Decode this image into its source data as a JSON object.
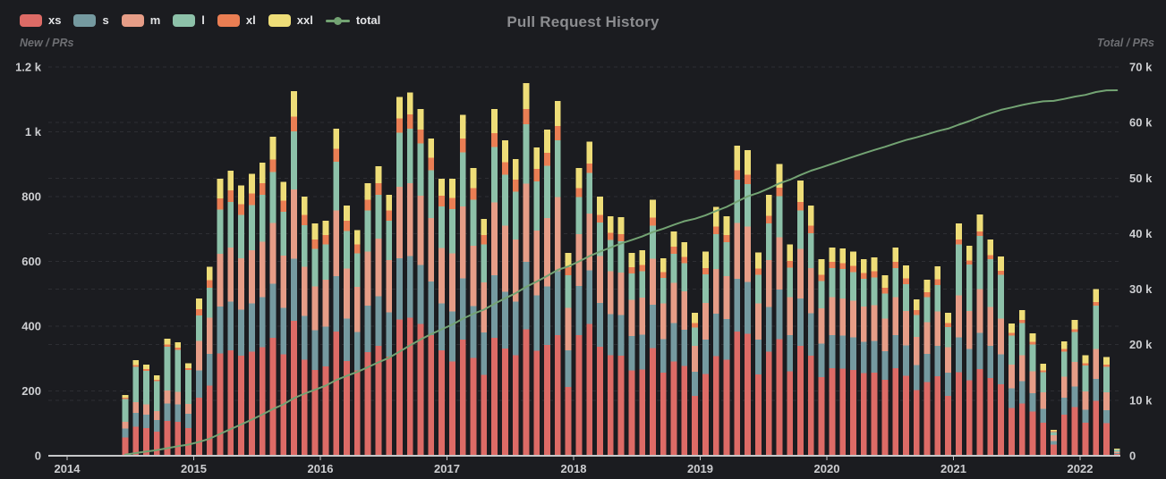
{
  "title": "Pull Request History",
  "legend": [
    {
      "label": "xs",
      "type": "bar",
      "color": "#dd6b66"
    },
    {
      "label": "s",
      "type": "bar",
      "color": "#759aa0"
    },
    {
      "label": "m",
      "type": "bar",
      "color": "#e69d87"
    },
    {
      "label": "l",
      "type": "bar",
      "color": "#8dc1a9"
    },
    {
      "label": "xl",
      "type": "bar",
      "color": "#ea7e53"
    },
    {
      "label": "xxl",
      "type": "bar",
      "color": "#eedd78"
    },
    {
      "label": "total",
      "type": "line",
      "color": "#73a373"
    }
  ],
  "y_axis_left": {
    "name": "New / PRs",
    "max": 1200,
    "tick_labels": [
      "1.2 k",
      "1 k",
      "800",
      "600",
      "400",
      "200",
      "0"
    ],
    "tick_values": [
      1200,
      1000,
      800,
      600,
      400,
      200,
      0
    ]
  },
  "y_axis_right": {
    "name": "Total / PRs",
    "max": 70000,
    "tick_labels": [
      "70 k",
      "60 k",
      "50 k",
      "40 k",
      "30 k",
      "20 k",
      "10 k",
      "0"
    ],
    "tick_values": [
      70000,
      60000,
      50000,
      40000,
      30000,
      20000,
      10000,
      0
    ]
  },
  "x_axis": {
    "year_labels": [
      "2014",
      "2015",
      "2016",
      "2017",
      "2018",
      "2019",
      "2020",
      "2021",
      "2022"
    ]
  },
  "chart_data": {
    "type": "bar",
    "subtype": "stacked-monthly-bars-with-cumulative-line",
    "title": "Pull Request History",
    "legend_position": "top-left",
    "grid": "horizontal-dashed",
    "ylim_left": [
      0,
      1200
    ],
    "ylim_right": [
      0,
      70000
    ],
    "x": [
      "2014-06",
      "2014-07",
      "2014-08",
      "2014-09",
      "2014-10",
      "2014-11",
      "2014-12",
      "2015-01",
      "2015-02",
      "2015-03",
      "2015-04",
      "2015-05",
      "2015-06",
      "2015-07",
      "2015-08",
      "2015-09",
      "2015-10",
      "2015-11",
      "2015-12",
      "2016-01",
      "2016-02",
      "2016-03",
      "2016-04",
      "2016-05",
      "2016-06",
      "2016-07",
      "2016-08",
      "2016-09",
      "2016-10",
      "2016-11",
      "2016-12",
      "2017-01",
      "2017-02",
      "2017-03",
      "2017-04",
      "2017-05",
      "2017-06",
      "2017-07",
      "2017-08",
      "2017-09",
      "2017-10",
      "2017-11",
      "2017-12",
      "2018-01",
      "2018-02",
      "2018-03",
      "2018-04",
      "2018-05",
      "2018-06",
      "2018-07",
      "2018-08",
      "2018-09",
      "2018-10",
      "2018-11",
      "2018-12",
      "2019-01",
      "2019-02",
      "2019-03",
      "2019-04",
      "2019-05",
      "2019-06",
      "2019-07",
      "2019-08",
      "2019-09",
      "2019-10",
      "2019-11",
      "2019-12",
      "2020-01",
      "2020-02",
      "2020-03",
      "2020-04",
      "2020-05",
      "2020-06",
      "2020-07",
      "2020-08",
      "2020-09",
      "2020-10",
      "2020-11",
      "2020-12",
      "2021-01",
      "2021-02",
      "2021-03",
      "2021-04",
      "2021-05",
      "2021-06",
      "2021-07",
      "2021-08",
      "2021-09",
      "2021-10",
      "2021-11",
      "2021-12",
      "2022-01",
      "2022-02",
      "2022-03",
      "2022-04"
    ],
    "series": [
      {
        "name": "xs",
        "type": "bar",
        "axis": "left",
        "color": "#dd6b66",
        "values": [
          56,
          89,
          85,
          74,
          108,
          105,
          86,
          180,
          216,
          316,
          326,
          309,
          322,
          335,
          364,
          313,
          417,
          296,
          265,
          276,
          383,
          293,
          264,
          320,
          340,
          306,
          421,
          426,
          407,
          372,
          325,
          291,
          358,
          302,
          249,
          364,
          331,
          311,
          391,
          324,
          342,
          372,
          213,
          373,
          407,
          336,
          311,
          309,
          263,
          266,
          332,
          256,
          291,
          277,
          185,
          252,
          307,
          296,
          383,
          377,
          251,
          322,
          360,
          261,
          340,
          309,
          243,
          270,
          269,
          265,
          255,
          257,
          234,
          270,
          247,
          203,
          228,
          246,
          185,
          258,
          233,
          268,
          240,
          221,
          147,
          162,
          136,
          102,
          35,
          127,
          151,
          102,
          170,
          101,
          6
        ]
      },
      {
        "name": "s",
        "type": "bar",
        "axis": "left",
        "color": "#759aa0",
        "values": [
          28,
          44,
          42,
          37,
          54,
          53,
          43,
          83,
          99,
          145,
          150,
          142,
          148,
          154,
          167,
          144,
          191,
          136,
          122,
          123,
          172,
          131,
          118,
          143,
          152,
          137,
          188,
          191,
          182,
          166,
          145,
          154,
          190,
          160,
          132,
          193,
          175,
          165,
          207,
          171,
          181,
          197,
          113,
          151,
          165,
          136,
          126,
          125,
          106,
          108,
          134,
          104,
          118,
          112,
          75,
          107,
          131,
          126,
          163,
          160,
          107,
          137,
          153,
          111,
          145,
          131,
          103,
          103,
          102,
          101,
          97,
          98,
          89,
          103,
          94,
          77,
          87,
          94,
          71,
          108,
          97,
          112,
          100,
          92,
          61,
          68,
          57,
          43,
          10,
          53,
          63,
          40,
          67,
          40,
          2
        ]
      },
      {
        "name": "m",
        "type": "bar",
        "axis": "left",
        "color": "#e69d87",
        "values": [
          21,
          32,
          31,
          27,
          40,
          39,
          31,
          92,
          111,
          162,
          167,
          159,
          165,
          172,
          187,
          161,
          214,
          152,
          136,
          145,
          202,
          154,
          139,
          168,
          179,
          161,
          222,
          224,
          214,
          196,
          171,
          180,
          221,
          186,
          154,
          225,
          205,
          192,
          242,
          200,
          211,
          230,
          131,
          160,
          175,
          144,
          133,
          132,
          113,
          114,
          142,
          110,
          125,
          119,
          79,
          113,
          138,
          133,
          172,
          170,
          113,
          145,
          162,
          118,
          153,
          139,
          109,
          116,
          115,
          113,
          109,
          110,
          100,
          116,
          106,
          87,
          98,
          105,
          79,
          129,
          117,
          134,
          120,
          111,
          73,
          81,
          68,
          51,
          18,
          64,
          76,
          56,
          93,
          55,
          4
        ]
      },
      {
        "name": "l",
        "type": "bar",
        "axis": "left",
        "color": "#8dc1a9",
        "values": [
          70,
          109,
          104,
          92,
          134,
          130,
          105,
          78,
          93,
          137,
          141,
          134,
          139,
          145,
          158,
          135,
          180,
          128,
          115,
          109,
          151,
          116,
          104,
          126,
          134,
          121,
          166,
          168,
          161,
          147,
          128,
          137,
          168,
          142,
          117,
          171,
          156,
          147,
          184,
          152,
          161,
          175,
          100,
          115,
          126,
          104,
          96,
          96,
          81,
          82,
          103,
          79,
          90,
          86,
          57,
          88,
          108,
          104,
          134,
          132,
          88,
          113,
          126,
          91,
          119,
          108,
          85,
          90,
          90,
          88,
          85,
          86,
          78,
          90,
          82,
          68,
          76,
          82,
          62,
          158,
          143,
          164,
          147,
          135,
          90,
          99,
          83,
          62,
          10,
          78,
          92,
          81,
          134,
          79,
          8
        ]
      },
      {
        "name": "xl",
        "type": "bar",
        "axis": "left",
        "color": "#ea7e53",
        "values": [
          4,
          6,
          6,
          5,
          7,
          7,
          6,
          19,
          23,
          34,
          35,
          33,
          35,
          36,
          39,
          34,
          45,
          32,
          29,
          29,
          40,
          31,
          28,
          34,
          36,
          32,
          44,
          45,
          43,
          39,
          34,
          34,
          42,
          36,
          29,
          43,
          39,
          37,
          46,
          38,
          40,
          44,
          25,
          27,
          29,
          24,
          22,
          22,
          19,
          19,
          24,
          18,
          21,
          20,
          13,
          19,
          23,
          22,
          29,
          28,
          19,
          24,
          27,
          20,
          26,
          23,
          18,
          19,
          19,
          19,
          18,
          18,
          17,
          19,
          18,
          14,
          16,
          18,
          13,
          14,
          13,
          15,
          13,
          12,
          8,
          9,
          8,
          6,
          3,
          7,
          8,
          6,
          10,
          6,
          0
        ]
      },
      {
        "name": "xxl",
        "type": "bar",
        "axis": "left",
        "color": "#eedd78",
        "values": [
          9,
          15,
          14,
          13,
          18,
          17,
          14,
          34,
          42,
          61,
          61,
          58,
          61,
          63,
          70,
          58,
          79,
          56,
          50,
          44,
          61,
          47,
          43,
          50,
          53,
          49,
          67,
          68,
          63,
          59,
          52,
          59,
          74,
          62,
          50,
          74,
          68,
          64,
          80,
          67,
          72,
          77,
          44,
          62,
          68,
          56,
          52,
          52,
          44,
          45,
          55,
          43,
          47,
          45,
          32,
          51,
          61,
          59,
          76,
          76,
          49,
          65,
          73,
          52,
          67,
          62,
          49,
          45,
          45,
          44,
          43,
          43,
          39,
          45,
          41,
          34,
          38,
          40,
          31,
          50,
          45,
          52,
          47,
          44,
          29,
          31,
          26,
          20,
          4,
          24,
          30,
          25,
          41,
          24,
          2
        ]
      },
      {
        "name": "total",
        "type": "line",
        "axis": "right",
        "color": "#73a373",
        "values": [
          188,
          483,
          765,
          1013,
          1374,
          1725,
          2010,
          2496,
          3080,
          3935,
          4815,
          5650,
          6520,
          7425,
          8410,
          9255,
          10381,
          11181,
          11898,
          12624,
          13633,
          14405,
          15101,
          15942,
          16836,
          17642,
          18750,
          19872,
          20942,
          21921,
          22776,
          23631,
          24684,
          25572,
          26303,
          27373,
          28347,
          29263,
          30413,
          31365,
          32372,
          33467,
          34093,
          34981,
          35951,
          36751,
          37491,
          38227,
          38853,
          39487,
          40277,
          40887,
          41579,
          42238,
          42679,
          43309,
          44077,
          44817,
          45774,
          46717,
          47344,
          48150,
          49051,
          49704,
          50554,
          51326,
          51933,
          52576,
          53216,
          53846,
          54453,
          55065,
          55622,
          56265,
          56853,
          57336,
          57879,
          58464,
          58905,
          59622,
          60270,
          61015,
          61682,
          62297,
          62705,
          63155,
          63533,
          63817,
          63897,
          64250,
          64670,
          64980,
          65495,
          65800,
          65822
        ]
      }
    ]
  },
  "colors": {
    "background": "#1b1c20",
    "grid_line": "#2d2e33",
    "axis_line": "#c7c8ca",
    "tick_label": "#cdced1",
    "title_text": "#8c8d90",
    "axis_name_text": "#6e6f73",
    "legend_label": "#e3e4e6"
  }
}
